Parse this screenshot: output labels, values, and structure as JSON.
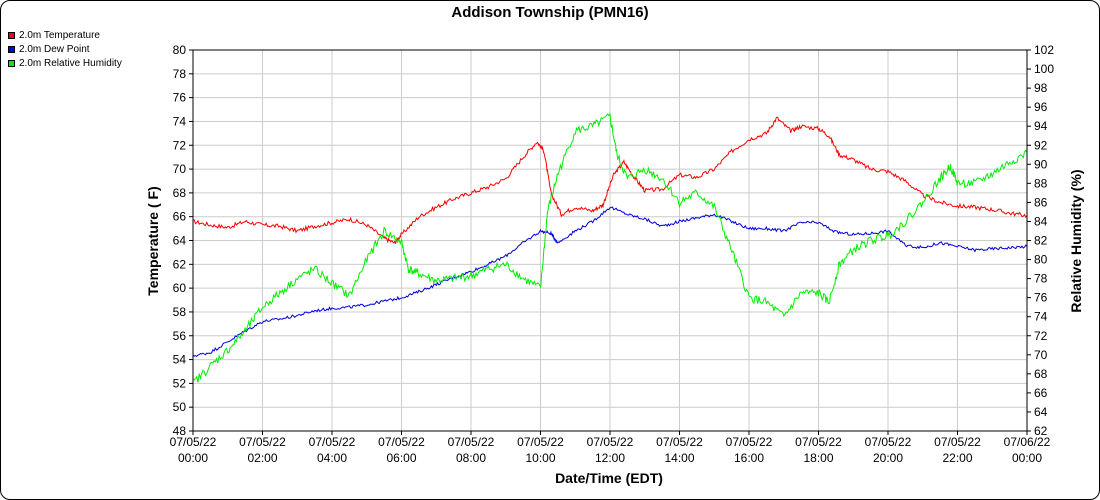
{
  "chart_data": {
    "type": "line",
    "title": "Addison Township (PMN16)",
    "xlabel": "Date/Time (EDT)",
    "ylabel": "Temperature ( F)",
    "y2label": "Relative Humidity (%)",
    "ylim": [
      48,
      80
    ],
    "y2lim": [
      62,
      102
    ],
    "xlim": [
      0,
      24
    ],
    "x_ticks": [
      {
        "hour": 0,
        "date": "07/05/22",
        "time": "00:00"
      },
      {
        "hour": 2,
        "date": "07/05/22",
        "time": "02:00"
      },
      {
        "hour": 4,
        "date": "07/05/22",
        "time": "04:00"
      },
      {
        "hour": 6,
        "date": "07/05/22",
        "time": "06:00"
      },
      {
        "hour": 8,
        "date": "07/05/22",
        "time": "08:00"
      },
      {
        "hour": 10,
        "date": "07/05/22",
        "time": "10:00"
      },
      {
        "hour": 12,
        "date": "07/05/22",
        "time": "12:00"
      },
      {
        "hour": 14,
        "date": "07/05/22",
        "time": "14:00"
      },
      {
        "hour": 16,
        "date": "07/05/22",
        "time": "16:00"
      },
      {
        "hour": 18,
        "date": "07/05/22",
        "time": "18:00"
      },
      {
        "hour": 20,
        "date": "07/05/22",
        "time": "20:00"
      },
      {
        "hour": 22,
        "date": "07/05/22",
        "time": "22:00"
      },
      {
        "hour": 24,
        "date": "07/06/22",
        "time": "00:00"
      }
    ],
    "y_ticks": [
      48,
      50,
      52,
      54,
      56,
      58,
      60,
      62,
      64,
      66,
      68,
      70,
      72,
      74,
      76,
      78,
      80
    ],
    "y2_ticks": [
      62,
      64,
      66,
      68,
      70,
      72,
      74,
      76,
      78,
      80,
      82,
      84,
      86,
      88,
      90,
      92,
      94,
      96,
      98,
      100,
      102
    ],
    "grid": true,
    "legend_position": "top-left",
    "series": [
      {
        "name": "2.0m Temperature",
        "color": "#ff0000",
        "axis": "left",
        "points": [
          [
            0,
            65.6
          ],
          [
            0.5,
            65.3
          ],
          [
            1,
            65.1
          ],
          [
            1.5,
            65.6
          ],
          [
            2,
            65.3
          ],
          [
            2.5,
            65.2
          ],
          [
            3,
            64.8
          ],
          [
            3.5,
            65.2
          ],
          [
            4,
            65.5
          ],
          [
            4.5,
            65.8
          ],
          [
            5,
            65.3
          ],
          [
            5.5,
            64.2
          ],
          [
            5.8,
            63.8
          ],
          [
            6,
            64.5
          ],
          [
            6.5,
            66.0
          ],
          [
            7,
            66.8
          ],
          [
            7.5,
            67.5
          ],
          [
            8,
            68.0
          ],
          [
            8.5,
            68.5
          ],
          [
            9,
            69.2
          ],
          [
            9.5,
            71.0
          ],
          [
            9.9,
            72.3
          ],
          [
            10.1,
            71.5
          ],
          [
            10.3,
            68.0
          ],
          [
            10.6,
            66.2
          ],
          [
            11,
            66.8
          ],
          [
            11.5,
            66.5
          ],
          [
            11.8,
            67.0
          ],
          [
            12.1,
            69.5
          ],
          [
            12.4,
            70.6
          ],
          [
            12.7,
            69.3
          ],
          [
            13,
            68.2
          ],
          [
            13.5,
            68.3
          ],
          [
            14,
            69.5
          ],
          [
            14.5,
            69.3
          ],
          [
            15,
            70.0
          ],
          [
            15.5,
            71.5
          ],
          [
            16,
            72.5
          ],
          [
            16.5,
            73.0
          ],
          [
            16.8,
            74.3
          ],
          [
            17.2,
            73.2
          ],
          [
            17.5,
            73.6
          ],
          [
            18,
            73.4
          ],
          [
            18.3,
            72.8
          ],
          [
            18.6,
            71.2
          ],
          [
            19,
            70.8
          ],
          [
            19.5,
            70.0
          ],
          [
            20,
            69.8
          ],
          [
            20.5,
            69.0
          ],
          [
            21,
            67.8
          ],
          [
            21.5,
            67.2
          ],
          [
            22,
            66.9
          ],
          [
            22.5,
            66.8
          ],
          [
            23,
            66.6
          ],
          [
            23.5,
            66.3
          ],
          [
            24,
            66.1
          ]
        ]
      },
      {
        "name": "2.0m Dew Point",
        "color": "#0000dd",
        "axis": "left",
        "points": [
          [
            0,
            54.3
          ],
          [
            0.5,
            54.6
          ],
          [
            1,
            55.5
          ],
          [
            1.5,
            56.4
          ],
          [
            2,
            57.2
          ],
          [
            2.5,
            57.4
          ],
          [
            3,
            57.7
          ],
          [
            3.5,
            58.1
          ],
          [
            4,
            58.3
          ],
          [
            4.5,
            58.4
          ],
          [
            5,
            58.6
          ],
          [
            5.5,
            58.9
          ],
          [
            6,
            59.2
          ],
          [
            6.5,
            59.7
          ],
          [
            7,
            60.3
          ],
          [
            7.5,
            60.9
          ],
          [
            8,
            61.4
          ],
          [
            8.5,
            62.0
          ],
          [
            9,
            62.7
          ],
          [
            9.5,
            63.8
          ],
          [
            10,
            64.8
          ],
          [
            10.3,
            64.6
          ],
          [
            10.5,
            63.8
          ],
          [
            11,
            64.8
          ],
          [
            11.5,
            65.6
          ],
          [
            12,
            66.8
          ],
          [
            12.5,
            66.2
          ],
          [
            13,
            65.8
          ],
          [
            13.5,
            65.2
          ],
          [
            14,
            65.6
          ],
          [
            14.5,
            65.9
          ],
          [
            15,
            66.2
          ],
          [
            15.5,
            65.6
          ],
          [
            16,
            65.0
          ],
          [
            16.5,
            65.0
          ],
          [
            17,
            64.8
          ],
          [
            17.5,
            65.5
          ],
          [
            18,
            65.5
          ],
          [
            18.5,
            64.7
          ],
          [
            19,
            64.5
          ],
          [
            19.5,
            64.6
          ],
          [
            20,
            64.8
          ],
          [
            20.5,
            63.6
          ],
          [
            21,
            63.4
          ],
          [
            21.5,
            63.8
          ],
          [
            22,
            63.5
          ],
          [
            22.5,
            63.2
          ],
          [
            23,
            63.3
          ],
          [
            23.5,
            63.4
          ],
          [
            24,
            63.5
          ]
        ]
      },
      {
        "name": "2.0m Relative Humidity",
        "color": "#00ee00",
        "axis": "right",
        "points": [
          [
            0,
            67.0
          ],
          [
            0.5,
            68.8
          ],
          [
            1,
            70.5
          ],
          [
            1.5,
            72.5
          ],
          [
            2,
            75.0
          ],
          [
            2.5,
            76.5
          ],
          [
            3,
            78.0
          ],
          [
            3.5,
            79.0
          ],
          [
            4,
            77.5
          ],
          [
            4.5,
            76.2
          ],
          [
            5,
            80.0
          ],
          [
            5.5,
            83.0
          ],
          [
            6,
            81.8
          ],
          [
            6.2,
            79.0
          ],
          [
            6.5,
            78.5
          ],
          [
            7,
            77.8
          ],
          [
            7.5,
            78.0
          ],
          [
            8,
            78.3
          ],
          [
            8.5,
            79.0
          ],
          [
            9,
            79.5
          ],
          [
            9.5,
            78.0
          ],
          [
            10,
            77.0
          ],
          [
            10.2,
            85.0
          ],
          [
            10.5,
            89.0
          ],
          [
            11,
            93.5
          ],
          [
            11.5,
            94.0
          ],
          [
            12,
            95.0
          ],
          [
            12.2,
            91.0
          ],
          [
            12.5,
            88.5
          ],
          [
            13,
            89.5
          ],
          [
            13.5,
            88.5
          ],
          [
            14,
            86.0
          ],
          [
            14.5,
            87.0
          ],
          [
            15,
            85.5
          ],
          [
            15.5,
            81.0
          ],
          [
            16,
            76.0
          ],
          [
            16.5,
            75.5
          ],
          [
            17,
            74.0
          ],
          [
            17.5,
            76.5
          ],
          [
            18,
            76.5
          ],
          [
            18.3,
            75.5
          ],
          [
            18.6,
            79.5
          ],
          [
            19,
            81.0
          ],
          [
            19.5,
            82.0
          ],
          [
            20,
            82.5
          ],
          [
            20.5,
            84.0
          ],
          [
            21,
            86.0
          ],
          [
            21.5,
            88.5
          ],
          [
            21.8,
            89.8
          ],
          [
            22,
            88.0
          ],
          [
            22.5,
            88.0
          ],
          [
            23,
            89.0
          ],
          [
            23.5,
            90.2
          ],
          [
            24,
            91.2
          ]
        ]
      }
    ]
  }
}
